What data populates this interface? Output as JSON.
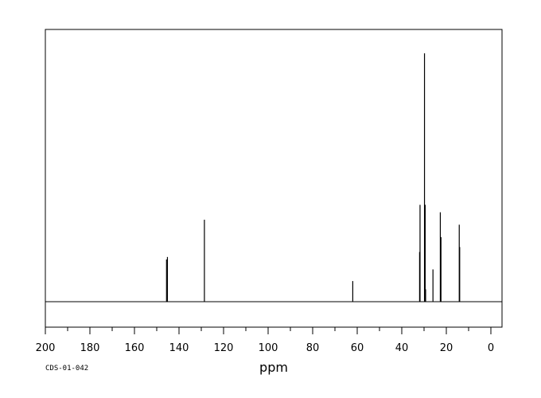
{
  "chart_data": {
    "type": "line",
    "title": "",
    "xlabel": "ppm",
    "ylabel": "",
    "xlim": [
      200,
      -5
    ],
    "x_reversed": true,
    "grid": false,
    "legend": "none",
    "ticks": {
      "major": [
        200,
        180,
        160,
        140,
        120,
        100,
        80,
        60,
        40,
        20,
        0
      ],
      "major_labels": [
        "200",
        "180",
        "160",
        "140",
        "120",
        "100",
        "80",
        "60",
        "40",
        "20",
        "0"
      ],
      "minor_step": 10
    },
    "peaks": [
      {
        "ppm": 145.6,
        "height": 0.17
      },
      {
        "ppm": 145.2,
        "height": 0.18
      },
      {
        "ppm": 128.6,
        "height": 0.33
      },
      {
        "ppm": 62.0,
        "height": 0.083
      },
      {
        "ppm": 32.0,
        "height": 0.2
      },
      {
        "ppm": 31.8,
        "height": 0.39
      },
      {
        "ppm": 29.8,
        "height": 1.0
      },
      {
        "ppm": 29.5,
        "height": 0.39
      },
      {
        "ppm": 29.3,
        "height": 0.05
      },
      {
        "ppm": 26.0,
        "height": 0.13
      },
      {
        "ppm": 22.7,
        "height": 0.36
      },
      {
        "ppm": 22.4,
        "height": 0.26
      },
      {
        "ppm": 14.2,
        "height": 0.31
      },
      {
        "ppm": 14.0,
        "height": 0.22
      }
    ],
    "sample_code": "CDS-01-042"
  }
}
